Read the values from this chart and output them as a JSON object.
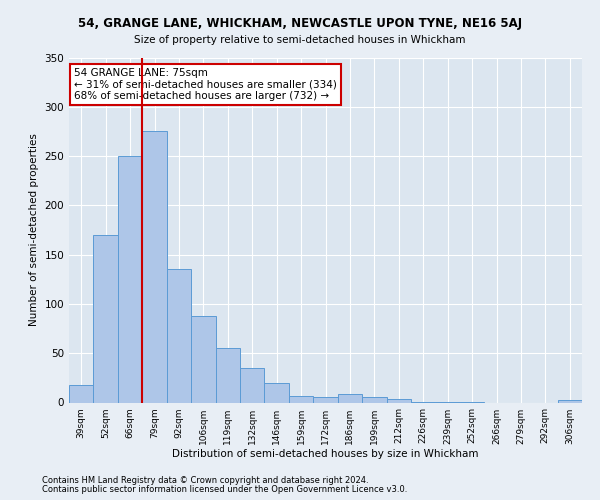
{
  "title_line1": "54, GRANGE LANE, WHICKHAM, NEWCASTLE UPON TYNE, NE16 5AJ",
  "title_line2": "Size of property relative to semi-detached houses in Whickham",
  "xlabel": "Distribution of semi-detached houses by size in Whickham",
  "ylabel": "Number of semi-detached properties",
  "footer_line1": "Contains HM Land Registry data © Crown copyright and database right 2024.",
  "footer_line2": "Contains public sector information licensed under the Open Government Licence v3.0.",
  "annotation_title": "54 GRANGE LANE: 75sqm",
  "annotation_line1": "← 31% of semi-detached houses are smaller (334)",
  "annotation_line2": "68% of semi-detached houses are larger (732) →",
  "categories": [
    "39sqm",
    "52sqm",
    "66sqm",
    "79sqm",
    "92sqm",
    "106sqm",
    "119sqm",
    "132sqm",
    "146sqm",
    "159sqm",
    "172sqm",
    "186sqm",
    "199sqm",
    "212sqm",
    "226sqm",
    "239sqm",
    "252sqm",
    "266sqm",
    "279sqm",
    "292sqm",
    "306sqm"
  ],
  "values": [
    18,
    170,
    250,
    275,
    135,
    88,
    55,
    35,
    20,
    7,
    6,
    9,
    6,
    4,
    1,
    1,
    1,
    0,
    0,
    0,
    3
  ],
  "bar_color": "#aec6e8",
  "bar_edge_color": "#5b9bd5",
  "vline_color": "#cc0000",
  "vline_position": 2.5,
  "annotation_box_edge_color": "#cc0000",
  "annotation_box_face_color": "#ffffff",
  "background_color": "#e8eef5",
  "plot_bg_color": "#dce6f0",
  "grid_color": "#ffffff",
  "ylim": [
    0,
    350
  ],
  "yticks": [
    0,
    50,
    100,
    150,
    200,
    250,
    300,
    350
  ]
}
